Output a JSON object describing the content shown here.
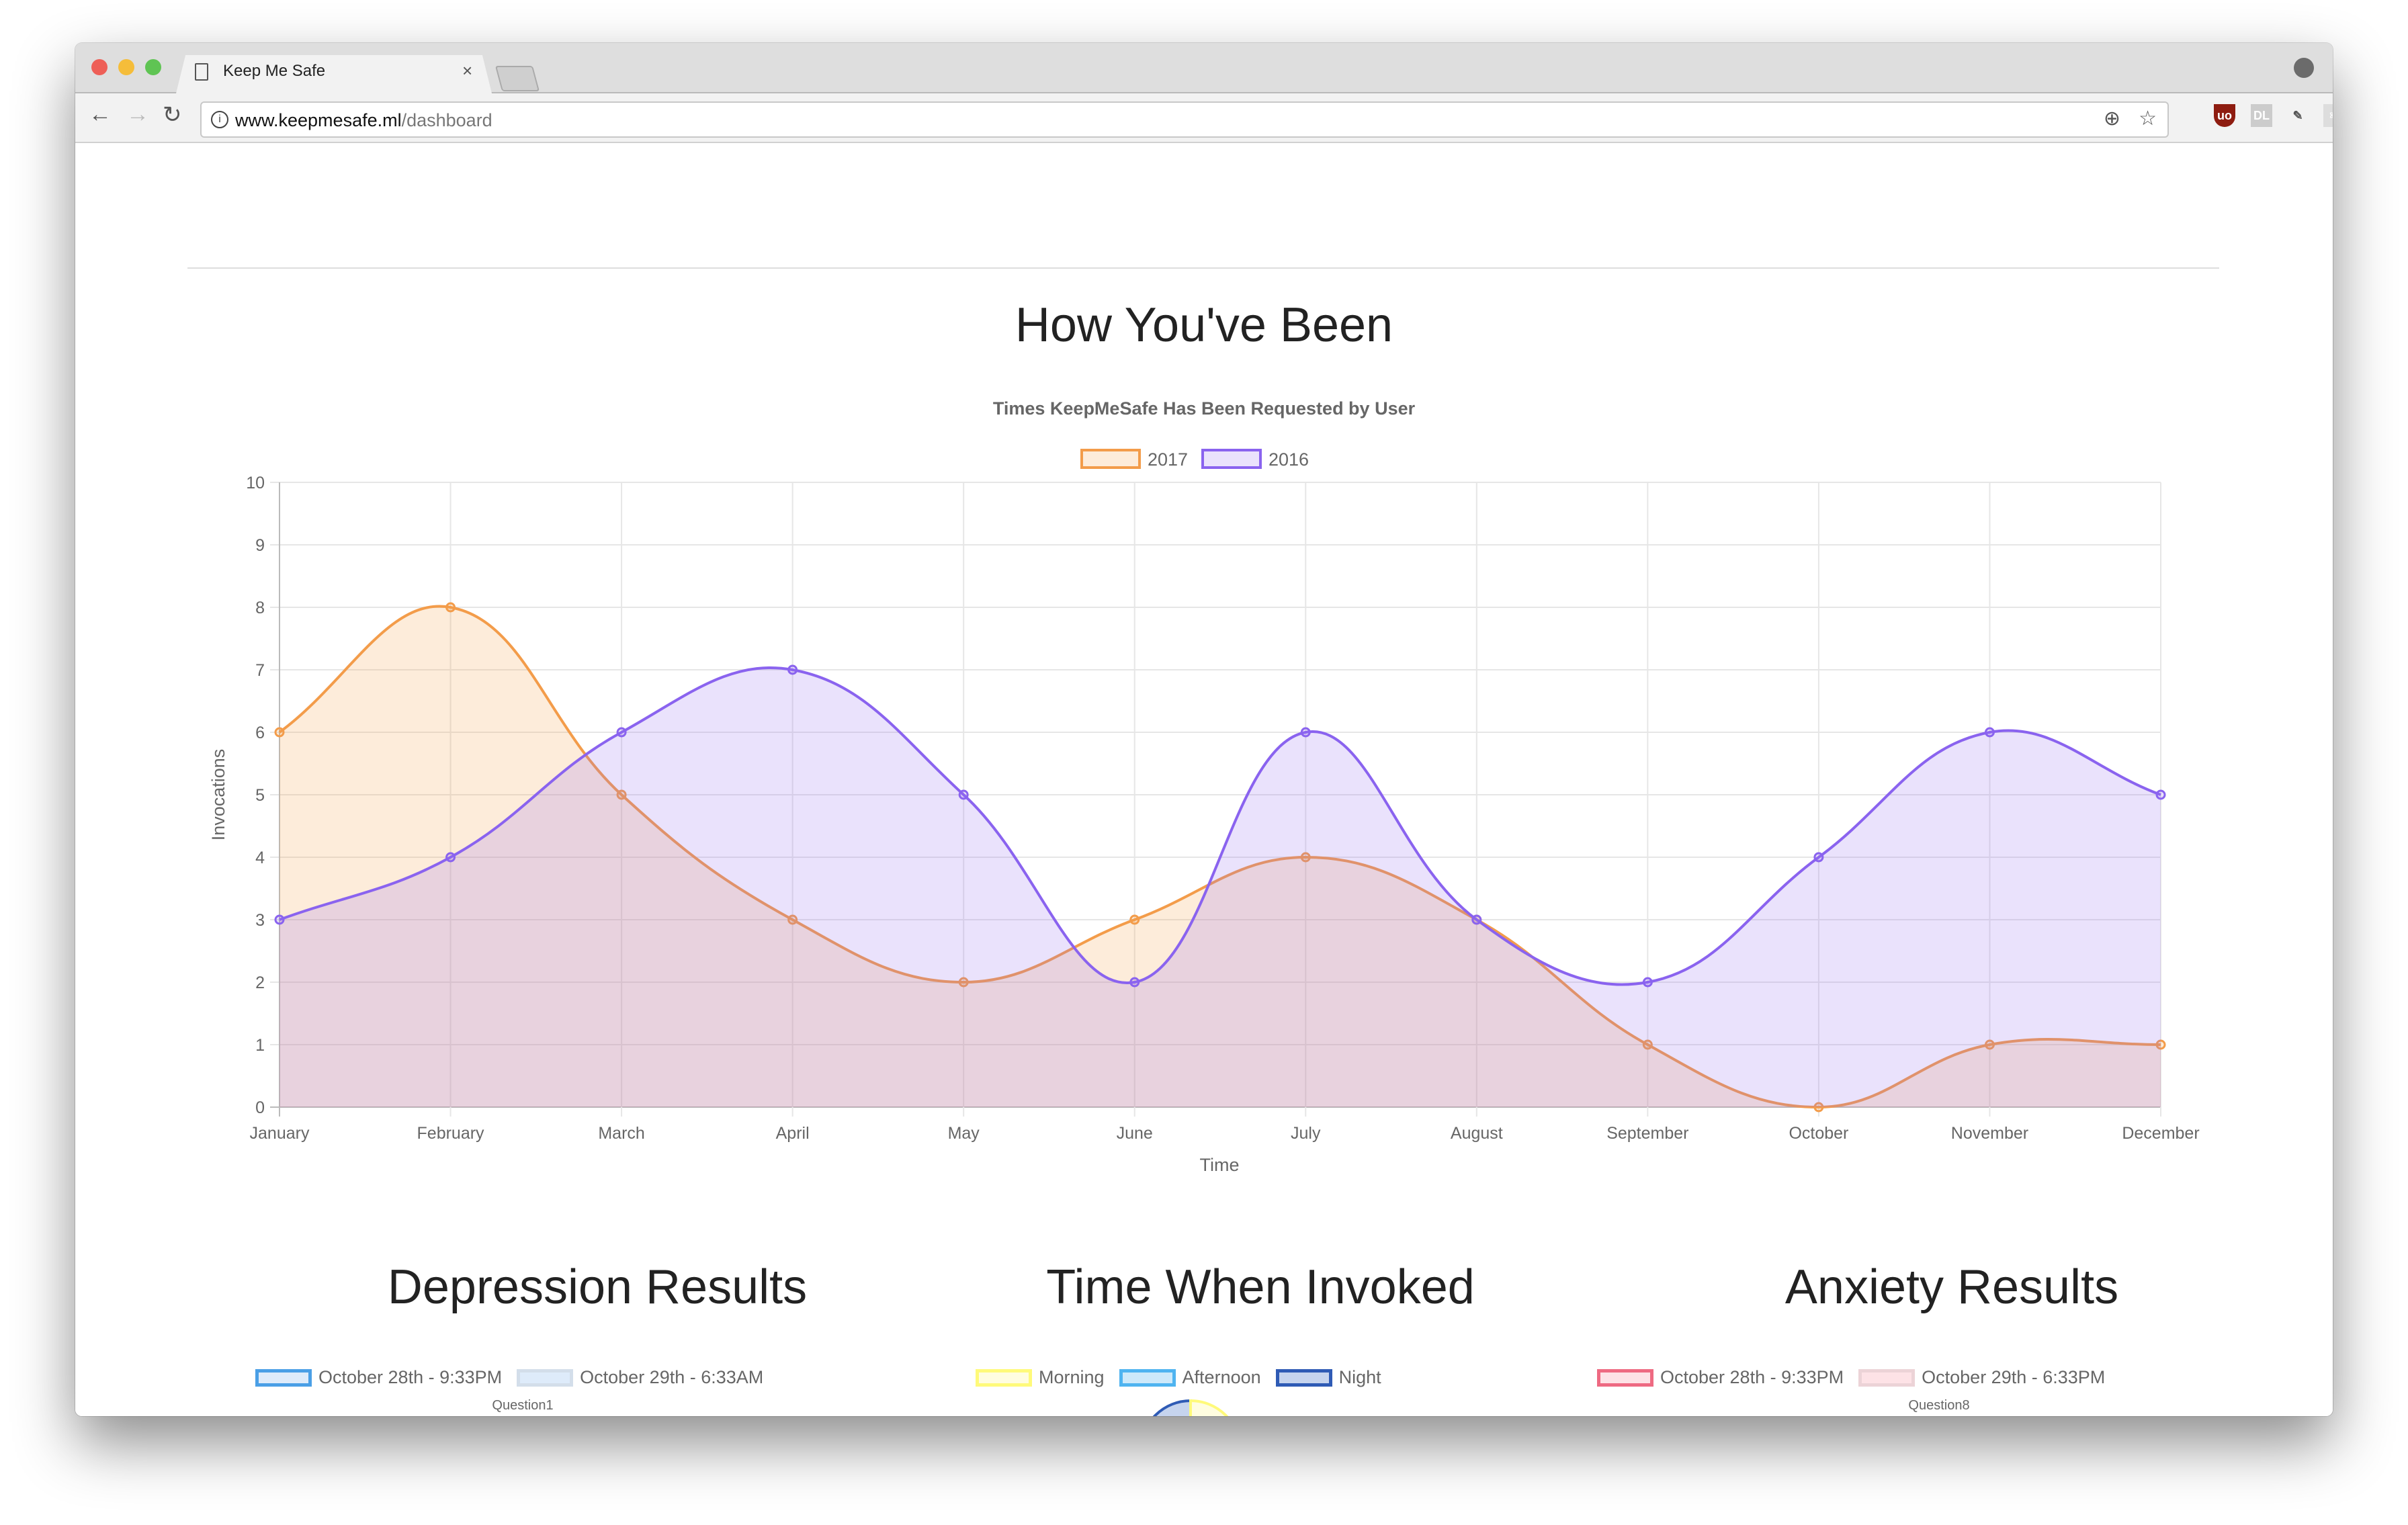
{
  "browser": {
    "tab_title": "Keep Me Safe",
    "tab_close": "×",
    "url_host": "www.keepmesafe.ml",
    "url_path": "/dashboard",
    "extensions": [
      "ublock-icon",
      "dl-icon",
      "eyedropper-icon",
      "react-devtools-icon"
    ]
  },
  "page": {
    "main_heading": "How You've Been",
    "sections": [
      {
        "heading": "Depression Results",
        "legend": [
          {
            "label": "October 28th - 9:33PM",
            "border": "#4a9fe6",
            "fill": "#deebfa"
          },
          {
            "label": "October 29th - 6:33AM",
            "border": "#d3deea",
            "fill": "#deebfa"
          }
        ],
        "axis_label": "Question1"
      },
      {
        "heading": "Time When Invoked",
        "legend": [
          {
            "label": "Morning",
            "border": "#fffa7a",
            "fill": "#fffde0"
          },
          {
            "label": "Afternoon",
            "border": "#4fb4f0",
            "fill": "#cde9fa"
          },
          {
            "label": "Night",
            "border": "#2f5bb5",
            "fill": "#c6d4ee"
          }
        ]
      },
      {
        "heading": "Anxiety Results",
        "legend": [
          {
            "label": "October 28th - 9:33PM",
            "border": "#ee6a82",
            "fill": "#fde2e6"
          },
          {
            "label": "October 29th - 6:33PM",
            "border": "#ecd3d7",
            "fill": "#fde2e6"
          }
        ],
        "axis_label": "Question8"
      }
    ]
  },
  "chart_data": {
    "type": "line",
    "title": "Times KeepMeSafe Has Been Requested by User",
    "xlabel": "Time",
    "ylabel": "Invocations",
    "ylim": [
      0,
      10
    ],
    "yticks": [
      "0",
      "1",
      "2",
      "3",
      "4",
      "5",
      "6",
      "7",
      "8",
      "9",
      "10"
    ],
    "grid": true,
    "legend_position": "top",
    "categories": [
      "January",
      "February",
      "March",
      "April",
      "May",
      "June",
      "July",
      "August",
      "September",
      "October",
      "November",
      "December"
    ],
    "series": [
      {
        "name": "2017",
        "values": [
          6,
          8,
          5,
          3,
          2,
          3,
          4,
          3,
          1,
          0,
          1,
          1
        ],
        "stroke": "#f39c4a",
        "fill": "rgba(247,160,70,0.2)"
      },
      {
        "name": "2016",
        "values": [
          3,
          4,
          6,
          7,
          5,
          2,
          6,
          3,
          2,
          4,
          6,
          5
        ],
        "stroke": "#8a63ef",
        "fill": "rgba(150,110,240,0.2)"
      }
    ]
  }
}
